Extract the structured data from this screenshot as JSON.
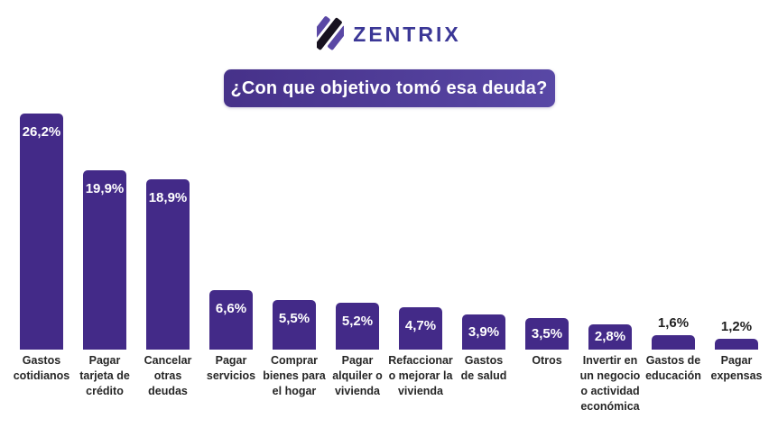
{
  "brand": {
    "name": "ZENTRIX",
    "wordmark_color": "#3b3796",
    "icon": {
      "purple": "#5a48a5",
      "black": "#17121f"
    }
  },
  "title_banner": {
    "text": "¿Con que objetivo tomó esa deuda?",
    "text_color": "#ffffff",
    "bg_gradient_from": "#463189",
    "bg_gradient_to": "#5948a6"
  },
  "chart_data": {
    "type": "bar",
    "title": "¿Con que objetivo tomó esa deuda?",
    "unit": "percent",
    "grid": false,
    "axes_visible": false,
    "legend": "none",
    "bar_color": "#432a88",
    "value_label_inside_color": "#ffffff",
    "value_label_outside_color": "#1f1f1f",
    "category_label_color": "#262626",
    "ylim": [
      0,
      28
    ],
    "categories": [
      "Gastos\ncotidianos",
      "Pagar\ntarjeta de\ncrédito",
      "Cancelar\notras\ndeudas",
      "Pagar\nservicios",
      "Comprar\nbienes para\nel hogar",
      "Pagar\nalquiler o\nvivienda",
      "Refaccionar\no mejorar la\nvivienda",
      "Gastos\nde salud",
      "Otros",
      "Invertir en\nun negocio\no actividad\neconómica",
      "Gastos de\neducación",
      "Pagar\nexpensas"
    ],
    "values": [
      26.2,
      19.9,
      18.9,
      6.6,
      5.5,
      5.2,
      4.7,
      3.9,
      3.5,
      2.8,
      1.6,
      1.2
    ],
    "value_labels": [
      "26,2%",
      "19,9%",
      "18,9%",
      "6,6%",
      "5,5%",
      "5,2%",
      "4,7%",
      "3,9%",
      "3,5%",
      "2,8%",
      "1,6%",
      "1,2%"
    ]
  }
}
